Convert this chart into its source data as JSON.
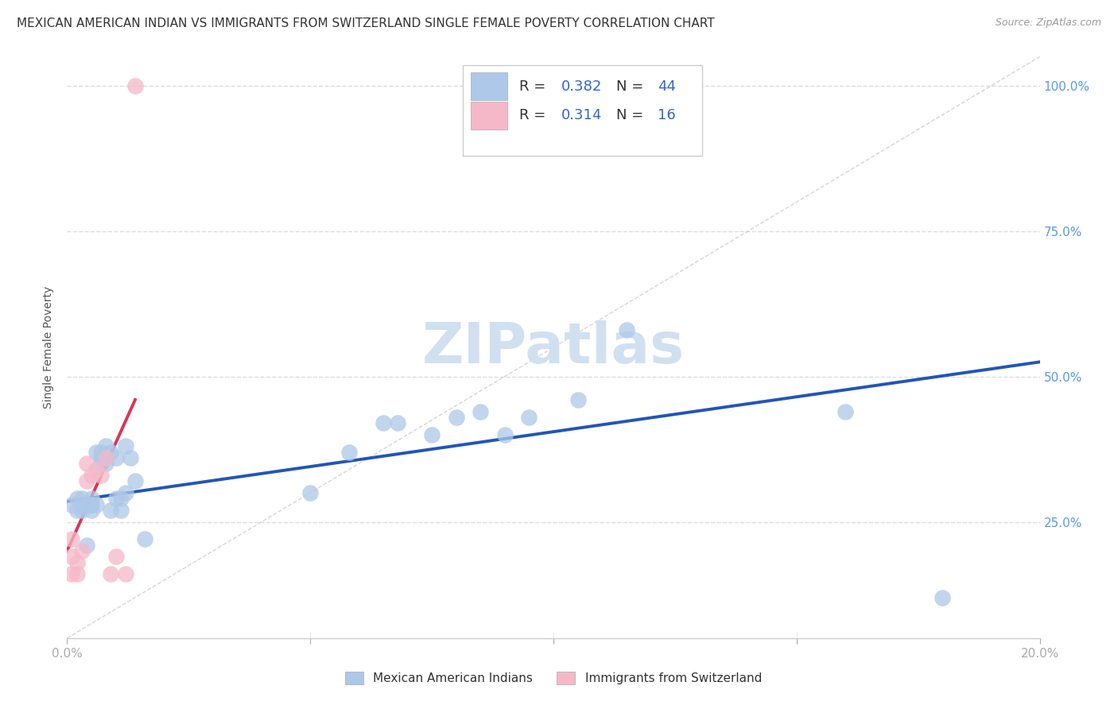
{
  "title": "MEXICAN AMERICAN INDIAN VS IMMIGRANTS FROM SWITZERLAND SINGLE FEMALE POVERTY CORRELATION CHART",
  "source": "Source: ZipAtlas.com",
  "ylabel": "Single Female Poverty",
  "ytick_labels": [
    "25.0%",
    "50.0%",
    "75.0%",
    "100.0%"
  ],
  "ytick_vals": [
    0.25,
    0.5,
    0.75,
    1.0
  ],
  "xrange": [
    0,
    0.2
  ],
  "yrange": [
    0.05,
    1.05
  ],
  "blue_R": 0.382,
  "blue_N": 44,
  "pink_R": 0.314,
  "pink_N": 16,
  "blue_label": "Mexican American Indians",
  "pink_label": "Immigrants from Switzerland",
  "blue_color": "#adc8e8",
  "pink_color": "#f5b8c8",
  "blue_line_color": "#2255bb",
  "pink_line_color": "#dd3355",
  "diagonal_color": "#cccccc",
  "watermark": "ZIPatlas",
  "blue_points_x": [
    0.001,
    0.002,
    0.002,
    0.003,
    0.003,
    0.003,
    0.004,
    0.004,
    0.005,
    0.005,
    0.005,
    0.005,
    0.006,
    0.006,
    0.007,
    0.007,
    0.007,
    0.008,
    0.008,
    0.008,
    0.009,
    0.009,
    0.01,
    0.01,
    0.011,
    0.011,
    0.012,
    0.012,
    0.013,
    0.014,
    0.016,
    0.05,
    0.058,
    0.065,
    0.068,
    0.075,
    0.08,
    0.085,
    0.09,
    0.095,
    0.105,
    0.115,
    0.16,
    0.18
  ],
  "blue_points_y": [
    0.28,
    0.29,
    0.27,
    0.28,
    0.29,
    0.27,
    0.28,
    0.21,
    0.28,
    0.29,
    0.27,
    0.28,
    0.28,
    0.37,
    0.37,
    0.36,
    0.35,
    0.36,
    0.35,
    0.38,
    0.37,
    0.27,
    0.36,
    0.29,
    0.27,
    0.29,
    0.3,
    0.38,
    0.36,
    0.32,
    0.22,
    0.3,
    0.37,
    0.42,
    0.42,
    0.4,
    0.43,
    0.44,
    0.4,
    0.43,
    0.46,
    0.58,
    0.44,
    0.12
  ],
  "pink_points_x": [
    0.001,
    0.001,
    0.001,
    0.002,
    0.002,
    0.003,
    0.004,
    0.004,
    0.005,
    0.006,
    0.007,
    0.008,
    0.009,
    0.01,
    0.012,
    0.014
  ],
  "pink_points_y": [
    0.22,
    0.19,
    0.16,
    0.18,
    0.16,
    0.2,
    0.35,
    0.32,
    0.33,
    0.34,
    0.33,
    0.36,
    0.16,
    0.19,
    0.16,
    1.0
  ],
  "blue_trend_x": [
    0.0,
    0.2
  ],
  "blue_trend_y": [
    0.285,
    0.525
  ],
  "pink_trend_x": [
    0.0,
    0.014
  ],
  "pink_trend_y": [
    0.2,
    0.46
  ],
  "grid_color": "#dddddd",
  "background_color": "#ffffff",
  "title_fontsize": 11,
  "axis_label_fontsize": 10,
  "tick_fontsize": 11,
  "watermark_fontsize": 52,
  "watermark_color": "#d0e0f0",
  "right_ytick_color": "#5599ee",
  "scatter_size": 220,
  "scatter_alpha": 0.75,
  "legend_R_color": "#3366cc",
  "legend_N_color": "#3366cc"
}
